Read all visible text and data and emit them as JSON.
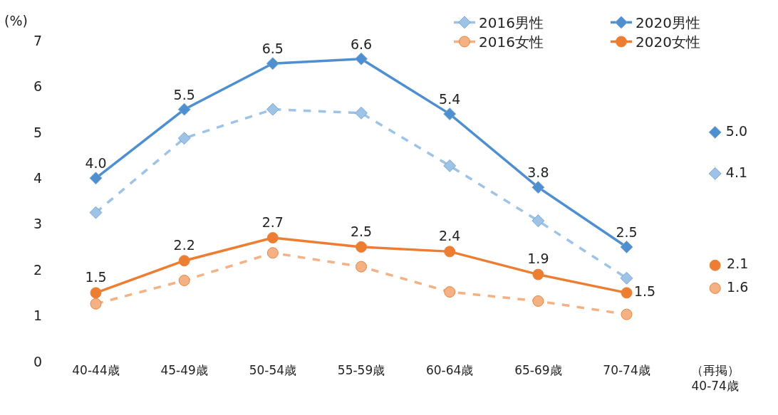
{
  "chart_data": {
    "type": "line",
    "ylabel": "(%)",
    "categories": [
      "40-44歳",
      "45-49歳",
      "50-54歳",
      "55-59歳",
      "60-64歳",
      "65-69歳",
      "70-74歳",
      "（再掲）\n40-74歳"
    ],
    "ylim": [
      0,
      7
    ],
    "yticks": [
      0,
      1,
      2,
      3,
      4,
      5,
      6,
      7
    ],
    "legend": "top right",
    "series": [
      {
        "name": "2016男性",
        "color": "#9dc3e6",
        "marker": "diamond",
        "line_style": "dashed",
        "values": [
          3.25,
          4.87,
          5.5,
          5.42,
          4.27,
          3.07,
          1.82,
          null
        ]
      },
      {
        "name": "2020男性",
        "color": "#4e8fd0",
        "marker": "diamond",
        "line_style": "solid",
        "values": [
          4.0,
          5.5,
          6.5,
          6.6,
          5.4,
          3.8,
          2.5,
          null
        ],
        "value_labels": [
          "4.0",
          "5.5",
          "6.5",
          "6.6",
          "5.4",
          "3.8",
          "2.5",
          null
        ]
      },
      {
        "name": "2016女性",
        "color": "#f4b183",
        "marker": "circle",
        "line_style": "dashed",
        "values": [
          1.26,
          1.77,
          2.37,
          2.07,
          1.52,
          1.32,
          1.03,
          null
        ]
      },
      {
        "name": "2020女性",
        "color": "#ed7d31",
        "marker": "circle",
        "line_style": "solid",
        "values": [
          1.5,
          2.2,
          2.7,
          2.5,
          2.4,
          1.9,
          1.5,
          null
        ],
        "value_labels": [
          "1.5",
          "2.2",
          "2.7",
          "2.5",
          "2.4",
          "1.9",
          "1.5",
          null
        ]
      },
      {
        "type": "scatter",
        "color": "#4e8fd0",
        "marker": "diamond",
        "values": [
          null,
          null,
          null,
          null,
          null,
          null,
          null,
          5.0
        ],
        "value_labels": [
          null,
          null,
          null,
          null,
          null,
          null,
          null,
          "5.0"
        ]
      },
      {
        "type": "scatter",
        "color": "#9dc3e6",
        "marker": "diamond",
        "values": [
          null,
          null,
          null,
          null,
          null,
          null,
          null,
          4.1
        ],
        "value_labels": [
          null,
          null,
          null,
          null,
          null,
          null,
          null,
          "4.1"
        ]
      },
      {
        "type": "scatter",
        "color": "#ed7d31",
        "marker": "circle",
        "values": [
          null,
          null,
          null,
          null,
          null,
          null,
          null,
          2.1
        ],
        "value_labels": [
          null,
          null,
          null,
          null,
          null,
          null,
          null,
          "2.1"
        ]
      },
      {
        "type": "scatter",
        "color": "#f4b183",
        "marker": "circle",
        "values": [
          null,
          null,
          null,
          null,
          null,
          null,
          null,
          1.6
        ],
        "value_labels": [
          null,
          null,
          null,
          null,
          null,
          null,
          null,
          "1.6"
        ]
      }
    ]
  }
}
